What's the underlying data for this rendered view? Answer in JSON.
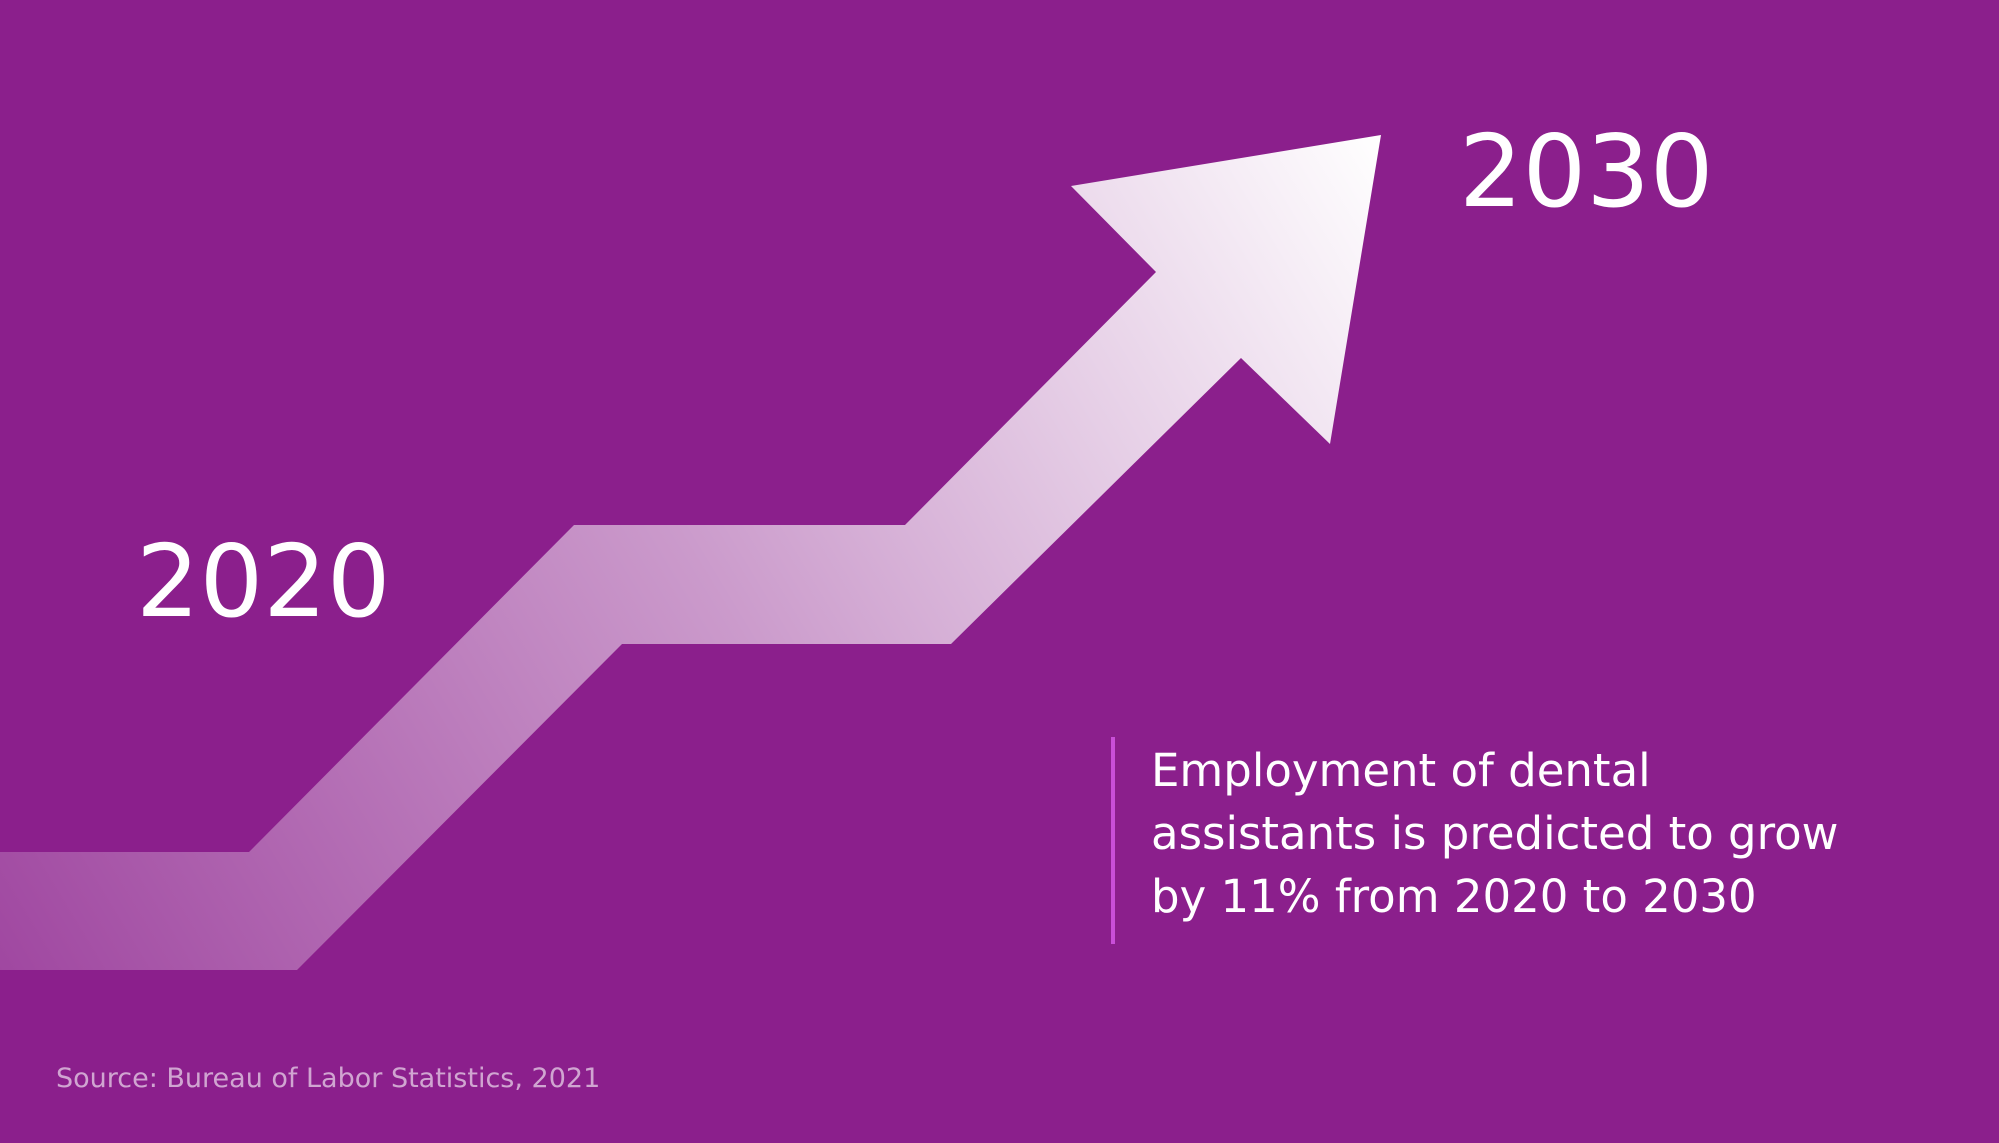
{
  "start_year": "2020",
  "end_year": "2030",
  "statement": {
    "lines": [
      "Employment of dental",
      "assistants is predicted to grow",
      "by 11% from 2020 to 2030"
    ]
  },
  "source": "Source: Bureau of Labor Statistics, 2021"
}
